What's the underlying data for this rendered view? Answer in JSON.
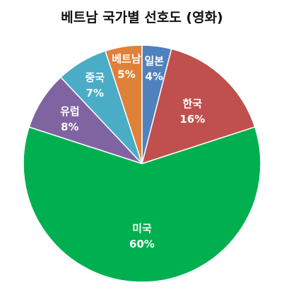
{
  "chart_data": {
    "type": "pie",
    "title": "베트남 국가별 선호도 (영화)",
    "categories": [
      "일본",
      "한국",
      "미국",
      "유럽",
      "중국",
      "베트남"
    ],
    "values": [
      4,
      16,
      60,
      8,
      7,
      5
    ],
    "value_labels": [
      "4%",
      "16%",
      "60%",
      "8%",
      "7%",
      "5%"
    ],
    "colors": [
      "#4f81bd",
      "#c0504d",
      "#00b050",
      "#8064a2",
      "#4bacc6",
      "#e0813a"
    ],
    "start": "12 o'clock, clockwise",
    "legend": "none"
  }
}
